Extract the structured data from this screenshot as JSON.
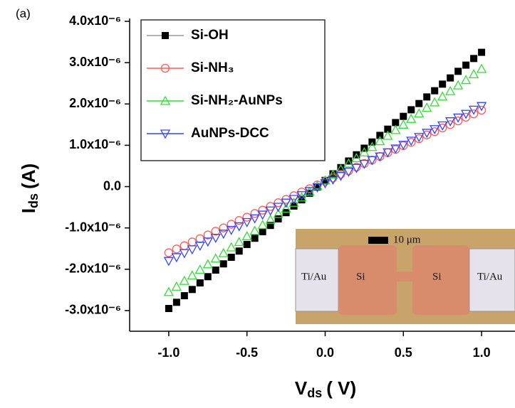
{
  "chart_data": {
    "type": "scatter",
    "panel_label": "(a)",
    "xlabel": [
      "V",
      "ds",
      "( V)"
    ],
    "ylabel": [
      "I",
      "ds",
      "(A)"
    ],
    "xlim": [
      -1.25,
      1.2
    ],
    "ylim": [
      -3.5e-06,
      4e-06
    ],
    "xticks": [
      {
        "value": -1.0,
        "label": "-1.0"
      },
      {
        "value": -0.5,
        "label": "-0.5"
      },
      {
        "value": 0,
        "label": "0.0"
      },
      {
        "value": 0.5,
        "label": "0.5"
      },
      {
        "value": 1.0,
        "label": "1.0"
      }
    ],
    "yticks": [
      {
        "value": -3e-06,
        "label": "-3.0x10⁻⁶"
      },
      {
        "value": -2e-06,
        "label": "-2.0x10⁻⁶"
      },
      {
        "value": -1e-06,
        "label": "-1.0x10⁻⁶"
      },
      {
        "value": 0,
        "label": "0.0"
      },
      {
        "value": 1e-06,
        "label": "1.0x10⁻⁶"
      },
      {
        "value": 2e-06,
        "label": "2.0x10⁻⁶"
      },
      {
        "value": 3e-06,
        "label": "3.0x10⁻⁶"
      },
      {
        "value": 4e-06,
        "label": "4.0x10⁻⁶"
      }
    ],
    "grid": false,
    "legend": "upper left",
    "x": [
      -1.0,
      -0.95,
      -0.9,
      -0.85,
      -0.8,
      -0.75,
      -0.7,
      -0.65,
      -0.6,
      -0.55,
      -0.5,
      -0.45,
      -0.4,
      -0.35,
      -0.3,
      -0.25,
      -0.2,
      -0.15,
      -0.1,
      -0.05,
      0,
      0.05,
      0.1,
      0.15,
      0.2,
      0.25,
      0.3,
      0.35,
      0.4,
      0.45,
      0.5,
      0.55,
      0.6,
      0.65,
      0.7,
      0.75,
      0.8,
      0.85,
      0.9,
      0.95,
      1.0
    ],
    "series": [
      {
        "name": "Si-OH",
        "color": "#000000",
        "marker": "square",
        "values": [
          -2.95e-06,
          -2.8e-06,
          -2.64e-06,
          -2.49e-06,
          -2.33e-06,
          -2.18e-06,
          -2.02e-06,
          -1.87e-06,
          -1.71e-06,
          -1.56e-06,
          -1.4e-06,
          -1.25e-06,
          -1.09e-06,
          -9.4e-07,
          -7.8e-07,
          -6.3e-07,
          -4.7e-07,
          -3.2e-07,
          -1.6e-07,
          -1e-08,
          1.5e-07,
          3.1e-07,
          4.6e-07,
          6.2e-07,
          7.7e-07,
          9.3e-07,
          1.08e-06,
          1.24e-06,
          1.39e-06,
          1.55e-06,
          1.7e-06,
          1.86e-06,
          2.01e-06,
          2.17e-06,
          2.32e-06,
          2.48e-06,
          2.63e-06,
          2.79e-06,
          2.94e-06,
          3.1e-06,
          3.25e-06
        ]
      },
      {
        "name": "Si-NH₃",
        "color": "#ff5a5a",
        "marker": "circle",
        "values": [
          -1.6e-06,
          -1.51e-06,
          -1.43e-06,
          -1.34e-06,
          -1.26e-06,
          -1.17e-06,
          -1.08e-06,
          -1e-06,
          -9.1e-07,
          -8.2e-07,
          -7.4e-07,
          -6.5e-07,
          -5.7e-07,
          -4.8e-07,
          -3.9e-07,
          -3.1e-07,
          -2.2e-07,
          -1.3e-07,
          -5e-08,
          4e-08,
          1.3e-07,
          2.1e-07,
          3e-07,
          3.8e-07,
          4.7e-07,
          5.6e-07,
          6.4e-07,
          7.3e-07,
          8.2e-07,
          9e-07,
          9.9e-07,
          1.07e-06,
          1.16e-06,
          1.25e-06,
          1.33e-06,
          1.42e-06,
          1.5e-06,
          1.59e-06,
          1.68e-06,
          1.76e-06,
          1.85e-06
        ]
      },
      {
        "name": "Si-NH₂-AuNPs",
        "color": "#33dd33",
        "marker": "triangle-up",
        "values": [
          -2.55e-06,
          -2.42e-06,
          -2.28e-06,
          -2.15e-06,
          -2.01e-06,
          -1.88e-06,
          -1.74e-06,
          -1.61e-06,
          -1.47e-06,
          -1.34e-06,
          -1.2e-06,
          -1.07e-06,
          -9.3e-07,
          -8e-07,
          -6.6e-07,
          -5.3e-07,
          -3.9e-07,
          -2.6e-07,
          -1.2e-07,
          2e-08,
          1.5e-07,
          2.9e-07,
          4.2e-07,
          5.6e-07,
          6.9e-07,
          8.3e-07,
          9.6e-07,
          1.1e-06,
          1.23e-06,
          1.37e-06,
          1.5e-06,
          1.64e-06,
          1.77e-06,
          1.91e-06,
          2.04e-06,
          2.18e-06,
          2.31e-06,
          2.45e-06,
          2.58e-06,
          2.72e-06,
          2.85e-06
        ]
      },
      {
        "name": "AuNPs-DCC",
        "color": "#3344ff",
        "marker": "triangle-down",
        "values": [
          -1.8e-06,
          -1.71e-06,
          -1.61e-06,
          -1.52e-06,
          -1.43e-06,
          -1.33e-06,
          -1.24e-06,
          -1.14e-06,
          -1.05e-06,
          -9.6e-07,
          -8.6e-07,
          -7.7e-07,
          -6.8e-07,
          -5.8e-07,
          -4.9e-07,
          -3.9e-07,
          -3e-07,
          -2.1e-07,
          -1.1e-07,
          -2e-08,
          8e-08,
          1.7e-07,
          2.6e-07,
          3.6e-07,
          4.5e-07,
          5.5e-07,
          6.4e-07,
          7.3e-07,
          8.3e-07,
          9.2e-07,
          1.01e-06,
          1.11e-06,
          1.2e-06,
          1.3e-06,
          1.39e-06,
          1.48e-06,
          1.58e-06,
          1.67e-06,
          1.76e-06,
          1.86e-06,
          1.95e-06
        ]
      }
    ],
    "inset": {
      "scale_bar": "10 μm",
      "labels": [
        "Ti/Au",
        "Si",
        "Si",
        "Ti/Au"
      ]
    }
  }
}
